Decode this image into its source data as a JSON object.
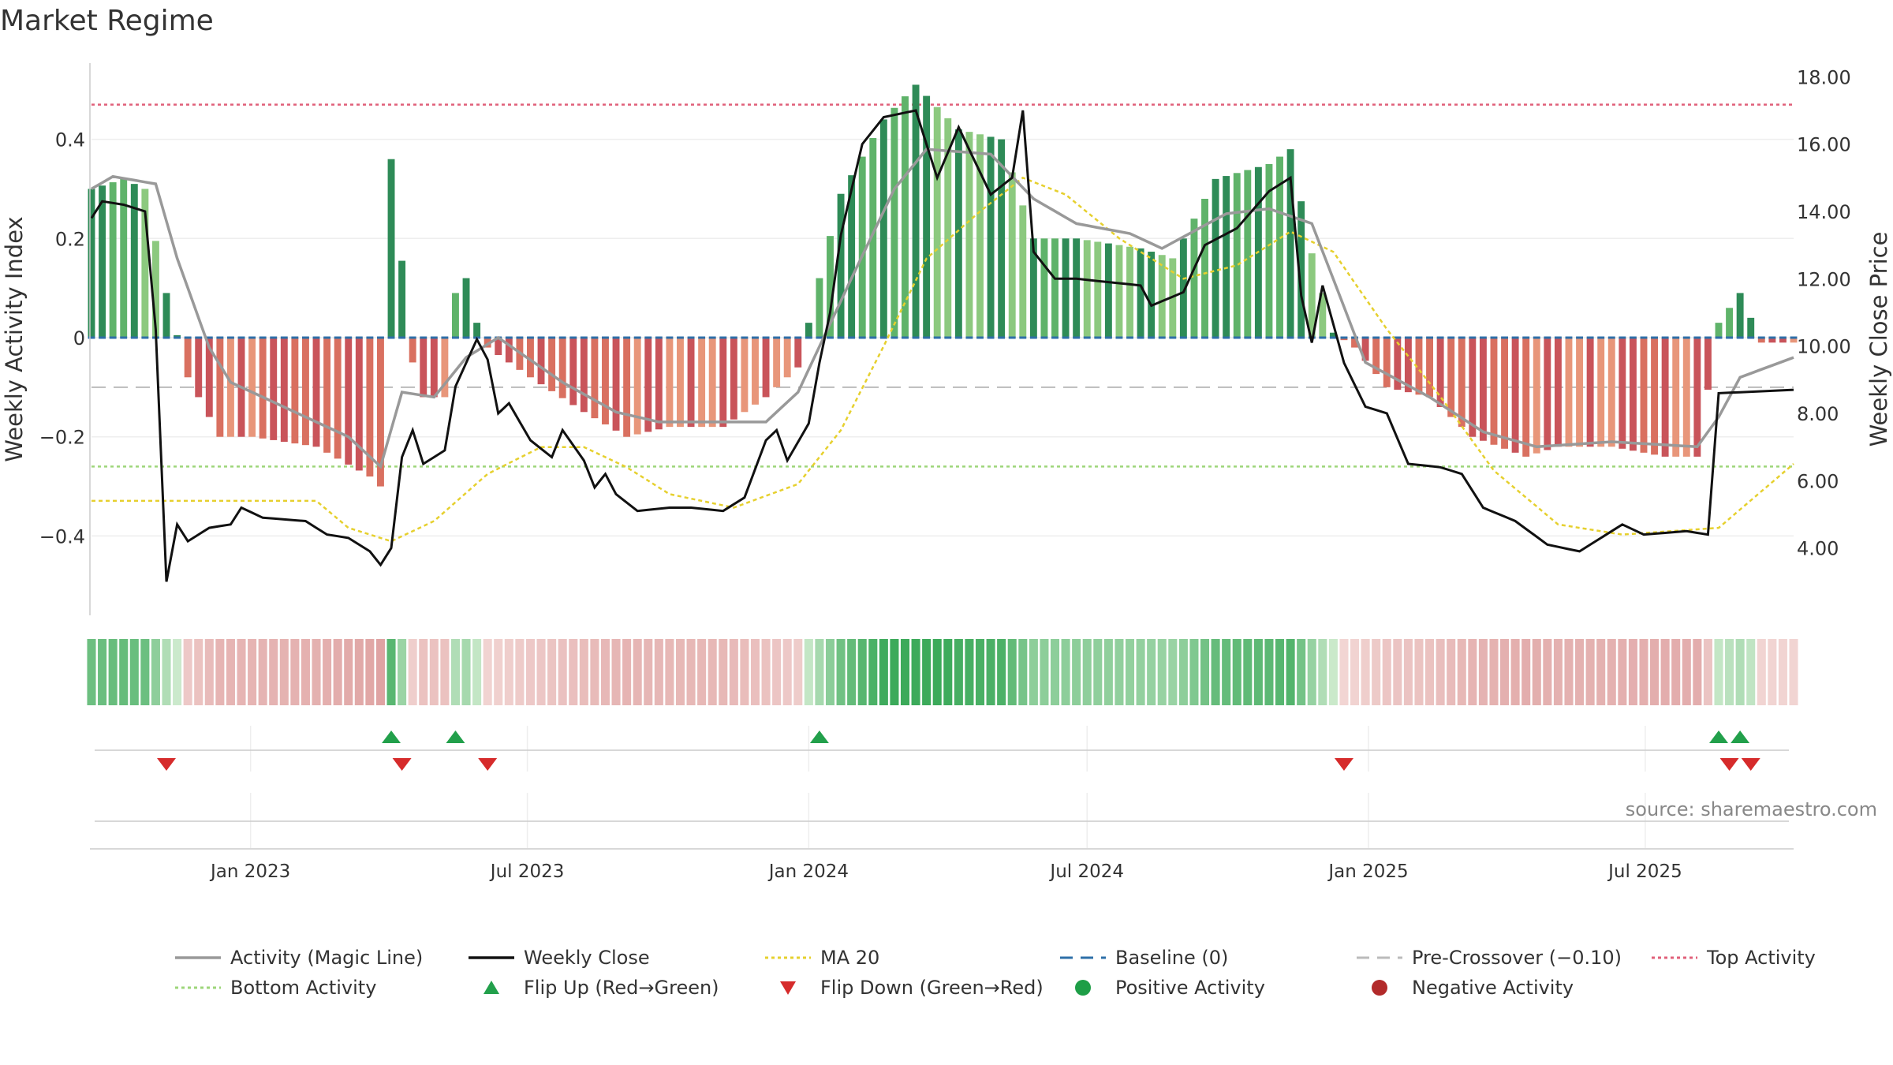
{
  "title": "Market Regime",
  "source": "source: sharemaestro.com",
  "colors": {
    "activity_line": "#999999",
    "weekly_close": "#111111",
    "ma20": "#e6d02e",
    "baseline": "#2e6fa8",
    "pre_crossover": "#bbbbbb",
    "top_activity": "#e0607a",
    "bottom_activity": "#9ed67a",
    "flip_up": "#22a04b",
    "flip_down": "#d62b2b",
    "positive_activity": "#1e9e47",
    "negative_activity": "#b22a2a"
  },
  "legend": [
    {
      "label": "Activity (Magic Line)",
      "icon": "solid-gray-line"
    },
    {
      "label": "Weekly Close",
      "icon": "solid-black-line"
    },
    {
      "label": "MA 20",
      "icon": "dotted-yellow-line"
    },
    {
      "label": "Baseline (0)",
      "icon": "dashed-blue-line"
    },
    {
      "label": "Pre-Crossover (−0.10)",
      "icon": "dashed-gray-line"
    },
    {
      "label": "Top Activity",
      "icon": "dotted-red-line"
    },
    {
      "label": "Bottom Activity",
      "icon": "dotted-green-line"
    },
    {
      "label": "Flip Up (Red→Green)",
      "icon": "green-up-triangle"
    },
    {
      "label": "Flip Down (Green→Red)",
      "icon": "red-down-triangle"
    },
    {
      "label": "Positive Activity",
      "icon": "green-circle"
    },
    {
      "label": "Negative Activity",
      "icon": "red-circle"
    }
  ],
  "chart_data": {
    "type": "bar",
    "title": "Market Regime",
    "ylabel": "Weekly Activity Index",
    "ylabel_right": "Weekly Close Price",
    "ylim": [
      -0.56,
      0.56
    ],
    "ylim_right": [
      2.0,
      18.5
    ],
    "yticks": [
      {
        "value": 0.4,
        "label": "0.4"
      },
      {
        "value": 0.2,
        "label": "0.2"
      },
      {
        "value": 0,
        "label": "0"
      },
      {
        "value": -0.2,
        "label": "−0.2"
      },
      {
        "value": -0.4,
        "label": "−0.4"
      }
    ],
    "yticks_right": [
      "18.00",
      "16.00",
      "14.00",
      "12.00",
      "10.00",
      "8.00",
      "6.00",
      "4.00"
    ],
    "x_start": "2022-09-19",
    "x_end": "2025-10-06",
    "xticks": [
      {
        "date": "2023-01-01",
        "label": "Jan 2023"
      },
      {
        "date": "2023-07-01",
        "label": "Jul 2023"
      },
      {
        "date": "2024-01-01",
        "label": "Jan 2024"
      },
      {
        "date": "2024-07-01",
        "label": "Jul 2024"
      },
      {
        "date": "2025-01-01",
        "label": "Jan 2025"
      },
      {
        "date": "2025-07-01",
        "label": "Jul 2025"
      }
    ],
    "reference_lines": {
      "top_activity": 0.47,
      "bottom_activity": -0.26,
      "pre_crossover": -0.1,
      "baseline": 0
    },
    "keyframes": {
      "activity": [
        [
          "2022-09-19",
          0.3
        ],
        [
          "2022-10-10",
          0.32
        ],
        [
          "2022-10-24",
          0.3
        ],
        [
          "2022-11-07",
          0.09
        ],
        [
          "2022-11-21",
          -0.08
        ],
        [
          "2022-12-12",
          -0.2
        ],
        [
          "2023-01-02",
          -0.2
        ],
        [
          "2023-02-13",
          -0.22
        ],
        [
          "2023-03-20",
          -0.28
        ],
        [
          "2023-03-27",
          -0.3
        ],
        [
          "2023-04-03",
          0.36
        ],
        [
          "2023-04-17",
          -0.05
        ],
        [
          "2023-04-24",
          -0.12
        ],
        [
          "2023-05-08",
          -0.12
        ],
        [
          "2023-05-15",
          0.09
        ],
        [
          "2023-05-22",
          0.12
        ],
        [
          "2023-05-29",
          0.03
        ],
        [
          "2023-06-05",
          -0.02
        ],
        [
          "2023-07-03",
          -0.08
        ],
        [
          "2023-08-07",
          -0.15
        ],
        [
          "2023-09-04",
          -0.2
        ],
        [
          "2023-10-02",
          -0.18
        ],
        [
          "2023-11-06",
          -0.18
        ],
        [
          "2023-12-04",
          -0.12
        ],
        [
          "2023-12-25",
          -0.06
        ],
        [
          "2024-01-08",
          0.12
        ],
        [
          "2024-01-22",
          0.29
        ],
        [
          "2024-02-19",
          0.44
        ],
        [
          "2024-03-11",
          0.51
        ],
        [
          "2024-04-08",
          0.42
        ],
        [
          "2024-05-06",
          0.4
        ],
        [
          "2024-05-27",
          0.2
        ],
        [
          "2024-06-24",
          0.2
        ],
        [
          "2024-08-05",
          0.18
        ],
        [
          "2024-08-26",
          0.16
        ],
        [
          "2024-09-23",
          0.32
        ],
        [
          "2024-10-28",
          0.35
        ],
        [
          "2024-11-11",
          0.38
        ],
        [
          "2024-11-25",
          0.17
        ],
        [
          "2024-12-09",
          0.01
        ],
        [
          "2024-12-23",
          -0.02
        ],
        [
          "2025-01-13",
          -0.1
        ],
        [
          "2025-02-10",
          -0.12
        ],
        [
          "2025-03-10",
          -0.2
        ],
        [
          "2025-04-14",
          -0.24
        ],
        [
          "2025-05-05",
          -0.22
        ],
        [
          "2025-06-09",
          -0.22
        ],
        [
          "2025-07-14",
          -0.24
        ],
        [
          "2025-08-04",
          -0.24
        ],
        [
          "2025-08-18",
          0.03
        ],
        [
          "2025-09-01",
          0.09
        ],
        [
          "2025-09-15",
          -0.01
        ],
        [
          "2025-10-06",
          -0.01
        ]
      ],
      "magic_line": [
        [
          "2022-09-19",
          0.3
        ],
        [
          "2022-10-03",
          0.325
        ],
        [
          "2022-10-31",
          0.31
        ],
        [
          "2022-11-14",
          0.16
        ],
        [
          "2022-12-05",
          -0.02
        ],
        [
          "2022-12-19",
          -0.09
        ],
        [
          "2023-01-23",
          -0.14
        ],
        [
          "2023-03-06",
          -0.2
        ],
        [
          "2023-03-27",
          -0.26
        ],
        [
          "2023-04-10",
          -0.11
        ],
        [
          "2023-05-01",
          -0.12
        ],
        [
          "2023-05-22",
          -0.04
        ],
        [
          "2023-06-12",
          0.0
        ],
        [
          "2023-07-24",
          -0.09
        ],
        [
          "2023-08-28",
          -0.15
        ],
        [
          "2023-09-25",
          -0.17
        ],
        [
          "2023-12-04",
          -0.17
        ],
        [
          "2023-12-25",
          -0.11
        ],
        [
          "2024-01-29",
          0.12
        ],
        [
          "2024-02-26",
          0.3
        ],
        [
          "2024-03-18",
          0.38
        ],
        [
          "2024-04-29",
          0.37
        ],
        [
          "2024-05-27",
          0.28
        ],
        [
          "2024-06-24",
          0.23
        ],
        [
          "2024-07-29",
          0.21
        ],
        [
          "2024-08-19",
          0.18
        ],
        [
          "2024-09-30",
          0.25
        ],
        [
          "2024-10-28",
          0.26
        ],
        [
          "2024-11-25",
          0.23
        ],
        [
          "2024-12-30",
          -0.05
        ],
        [
          "2025-02-10",
          -0.12
        ],
        [
          "2025-03-17",
          -0.19
        ],
        [
          "2025-04-21",
          -0.22
        ],
        [
          "2025-06-09",
          -0.21
        ],
        [
          "2025-08-04",
          -0.22
        ],
        [
          "2025-08-18",
          -0.16
        ],
        [
          "2025-09-01",
          -0.08
        ],
        [
          "2025-10-06",
          -0.04
        ]
      ],
      "weekly_close": [
        [
          "2022-09-19",
          13.8
        ],
        [
          "2022-09-26",
          14.3
        ],
        [
          "2022-10-10",
          14.2
        ],
        [
          "2022-10-24",
          14.0
        ],
        [
          "2022-10-31",
          10.5
        ],
        [
          "2022-11-07",
          3.0
        ],
        [
          "2022-11-14",
          4.7
        ],
        [
          "2022-11-21",
          4.2
        ],
        [
          "2022-12-05",
          4.6
        ],
        [
          "2022-12-19",
          4.7
        ],
        [
          "2022-12-26",
          5.2
        ],
        [
          "2023-01-09",
          4.9
        ],
        [
          "2023-02-06",
          4.8
        ],
        [
          "2023-02-20",
          4.4
        ],
        [
          "2023-03-06",
          4.3
        ],
        [
          "2023-03-20",
          3.9
        ],
        [
          "2023-03-27",
          3.5
        ],
        [
          "2023-04-03",
          4.0
        ],
        [
          "2023-04-10",
          6.7
        ],
        [
          "2023-04-17",
          7.5
        ],
        [
          "2023-04-24",
          6.5
        ],
        [
          "2023-05-08",
          6.9
        ],
        [
          "2023-05-15",
          8.8
        ],
        [
          "2023-05-29",
          10.2
        ],
        [
          "2023-06-05",
          9.6
        ],
        [
          "2023-06-12",
          8.0
        ],
        [
          "2023-06-19",
          8.3
        ],
        [
          "2023-07-03",
          7.2
        ],
        [
          "2023-07-17",
          6.7
        ],
        [
          "2023-07-24",
          7.5
        ],
        [
          "2023-08-07",
          6.6
        ],
        [
          "2023-08-14",
          5.8
        ],
        [
          "2023-08-21",
          6.2
        ],
        [
          "2023-08-28",
          5.6
        ],
        [
          "2023-09-11",
          5.1
        ],
        [
          "2023-10-02",
          5.2
        ],
        [
          "2023-10-16",
          5.2
        ],
        [
          "2023-11-06",
          5.1
        ],
        [
          "2023-11-20",
          5.5
        ],
        [
          "2023-12-04",
          7.2
        ],
        [
          "2023-12-11",
          7.5
        ],
        [
          "2023-12-18",
          6.6
        ],
        [
          "2024-01-01",
          7.7
        ],
        [
          "2024-01-08",
          9.5
        ],
        [
          "2024-01-15",
          11.0
        ],
        [
          "2024-01-22",
          13.3
        ],
        [
          "2024-02-05",
          16.0
        ],
        [
          "2024-02-19",
          16.8
        ],
        [
          "2024-03-11",
          17.0
        ],
        [
          "2024-03-25",
          15.0
        ],
        [
          "2024-04-08",
          16.5
        ],
        [
          "2024-04-29",
          14.5
        ],
        [
          "2024-05-13",
          15.0
        ],
        [
          "2024-05-20",
          17.0
        ],
        [
          "2024-05-27",
          12.8
        ],
        [
          "2024-06-10",
          12.0
        ],
        [
          "2024-06-24",
          12.0
        ],
        [
          "2024-08-05",
          11.8
        ],
        [
          "2024-08-12",
          11.2
        ],
        [
          "2024-09-02",
          11.6
        ],
        [
          "2024-09-16",
          13.0
        ],
        [
          "2024-10-07",
          13.5
        ],
        [
          "2024-10-28",
          14.6
        ],
        [
          "2024-11-11",
          15.0
        ],
        [
          "2024-11-18",
          11.5
        ],
        [
          "2024-11-25",
          10.1
        ],
        [
          "2024-12-02",
          11.8
        ],
        [
          "2024-12-16",
          9.5
        ],
        [
          "2024-12-30",
          8.2
        ],
        [
          "2025-01-13",
          8.0
        ],
        [
          "2025-01-27",
          6.5
        ],
        [
          "2025-02-17",
          6.4
        ],
        [
          "2025-03-03",
          6.2
        ],
        [
          "2025-03-17",
          5.2
        ],
        [
          "2025-04-07",
          4.8
        ],
        [
          "2025-04-28",
          4.1
        ],
        [
          "2025-05-19",
          3.9
        ],
        [
          "2025-06-02",
          4.3
        ],
        [
          "2025-06-16",
          4.7
        ],
        [
          "2025-06-30",
          4.4
        ],
        [
          "2025-07-28",
          4.5
        ],
        [
          "2025-08-11",
          4.4
        ],
        [
          "2025-08-18",
          8.6
        ],
        [
          "2025-10-06",
          8.7
        ]
      ],
      "ma20": [
        [
          "2022-09-19",
          5.4
        ],
        [
          "2023-02-13",
          5.4
        ],
        [
          "2023-03-06",
          4.6
        ],
        [
          "2023-04-03",
          4.2
        ],
        [
          "2023-05-01",
          4.8
        ],
        [
          "2023-06-05",
          6.2
        ],
        [
          "2023-07-10",
          7.0
        ],
        [
          "2023-08-07",
          7.0
        ],
        [
          "2023-09-04",
          6.4
        ],
        [
          "2023-10-02",
          5.6
        ],
        [
          "2023-11-13",
          5.2
        ],
        [
          "2023-12-25",
          5.9
        ],
        [
          "2024-01-22",
          7.5
        ],
        [
          "2024-02-19",
          10.0
        ],
        [
          "2024-03-18",
          12.6
        ],
        [
          "2024-04-22",
          14.0
        ],
        [
          "2024-05-20",
          15.0
        ],
        [
          "2024-06-17",
          14.5
        ],
        [
          "2024-07-22",
          13.2
        ],
        [
          "2024-09-02",
          12.0
        ],
        [
          "2024-10-07",
          12.4
        ],
        [
          "2024-11-11",
          13.4
        ],
        [
          "2024-12-09",
          12.8
        ],
        [
          "2025-01-13",
          10.5
        ],
        [
          "2025-02-17",
          8.5
        ],
        [
          "2025-03-24",
          6.3
        ],
        [
          "2025-05-05",
          4.7
        ],
        [
          "2025-06-16",
          4.4
        ],
        [
          "2025-08-18",
          4.6
        ],
        [
          "2025-10-06",
          6.5
        ]
      ]
    },
    "flip_up": [
      "2023-04-03",
      "2023-05-15",
      "2024-01-08",
      "2025-08-18",
      "2025-09-01"
    ],
    "flip_down": [
      "2022-11-07",
      "2023-04-10",
      "2023-06-05",
      "2024-12-16",
      "2025-08-25",
      "2025-09-08"
    ]
  }
}
